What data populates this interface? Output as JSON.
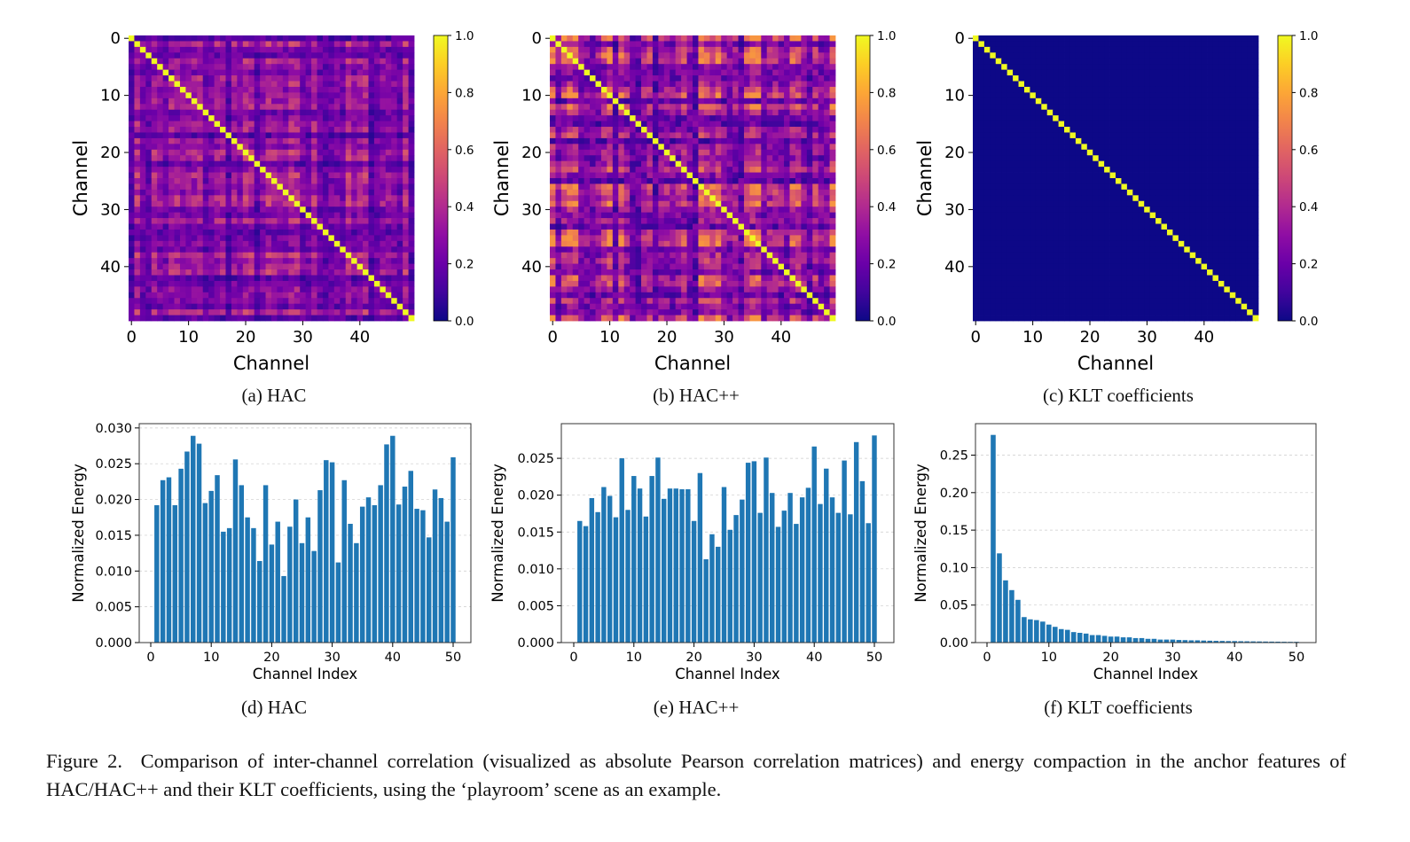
{
  "figure": {
    "caption_label": "Figure 2.",
    "caption_text": "Comparison of inter-channel correlation (visualized as absolute Pearson correlation matrices) and energy compaction in the anchor features of HAC/HAC++ and their KLT coefficients, using the ‘playroom’ scene as an example.",
    "subcaptions": [
      "(a) HAC",
      "(b) HAC++",
      "(c) KLT coefficients",
      "(d) HAC",
      "(e) HAC++",
      "(f) KLT coefficients"
    ]
  },
  "chart_data": [
    {
      "type": "heatmap",
      "panel": "a",
      "xlabel": "Channel",
      "ylabel": "Channel",
      "size": 50,
      "colormap": "plasma",
      "vlim": [
        0,
        1
      ],
      "diagonal": 1.0,
      "off_diagonal_range": [
        0.05,
        0.55
      ],
      "xticks": [
        "0",
        "10",
        "20",
        "30",
        "40"
      ],
      "yticks": [
        "0",
        "10",
        "20",
        "30",
        "40"
      ],
      "colorbar_ticks": [
        "0.0",
        "0.2",
        "0.4",
        "0.6",
        "0.8",
        "1.0"
      ]
    },
    {
      "type": "heatmap",
      "panel": "b",
      "xlabel": "Channel",
      "ylabel": "Channel",
      "size": 50,
      "colormap": "plasma",
      "vlim": [
        0,
        1
      ],
      "diagonal": 1.0,
      "off_diagonal_range": [
        0.05,
        0.75
      ],
      "xticks": [
        "0",
        "10",
        "20",
        "30",
        "40"
      ],
      "yticks": [
        "0",
        "10",
        "20",
        "30",
        "40"
      ],
      "colorbar_ticks": [
        "0.0",
        "0.2",
        "0.4",
        "0.6",
        "0.8",
        "1.0"
      ]
    },
    {
      "type": "heatmap",
      "panel": "c",
      "xlabel": "Channel",
      "ylabel": "Channel",
      "size": 50,
      "colormap": "plasma",
      "vlim": [
        0,
        1
      ],
      "diagonal": 1.0,
      "off_diagonal_range": [
        0,
        0
      ],
      "xticks": [
        "0",
        "10",
        "20",
        "30",
        "40"
      ],
      "yticks": [
        "0",
        "10",
        "20",
        "30",
        "40"
      ],
      "colorbar_ticks": [
        "0.0",
        "0.2",
        "0.4",
        "0.6",
        "0.8",
        "1.0"
      ]
    },
    {
      "type": "bar",
      "panel": "d",
      "xlabel": "Channel Index",
      "ylabel": "Normalized Energy",
      "color": "#1f77b4",
      "grid": "y-dashed",
      "ylim": [
        0,
        0.0306
      ],
      "xticks": [
        "0",
        "10",
        "20",
        "30",
        "40",
        "50"
      ],
      "yticks": [
        "0.000",
        "0.005",
        "0.010",
        "0.015",
        "0.020",
        "0.025",
        "0.030"
      ],
      "x": [
        1,
        2,
        3,
        4,
        5,
        6,
        7,
        8,
        9,
        10,
        11,
        12,
        13,
        14,
        15,
        16,
        17,
        18,
        19,
        20,
        21,
        22,
        23,
        24,
        25,
        26,
        27,
        28,
        29,
        30,
        31,
        32,
        33,
        34,
        35,
        36,
        37,
        38,
        39,
        40,
        41,
        42,
        43,
        44,
        45,
        46,
        47,
        48,
        49,
        50
      ],
      "values": [
        0.0192,
        0.0227,
        0.0231,
        0.0192,
        0.0243,
        0.0267,
        0.0289,
        0.0278,
        0.0195,
        0.0212,
        0.0234,
        0.0155,
        0.016,
        0.0256,
        0.022,
        0.0175,
        0.016,
        0.0114,
        0.022,
        0.0137,
        0.0169,
        0.0093,
        0.0162,
        0.02,
        0.0139,
        0.0175,
        0.0128,
        0.0213,
        0.0255,
        0.0252,
        0.0112,
        0.0227,
        0.0166,
        0.0139,
        0.019,
        0.0203,
        0.0192,
        0.022,
        0.0277,
        0.0289,
        0.0193,
        0.0218,
        0.024,
        0.0187,
        0.0185,
        0.0147,
        0.0214,
        0.0202,
        0.0169,
        0.0259
      ]
    },
    {
      "type": "bar",
      "panel": "e",
      "xlabel": "Channel Index",
      "ylabel": "Normalized Energy",
      "color": "#1f77b4",
      "grid": "y-dashed",
      "ylim": [
        0,
        0.0297
      ],
      "xticks": [
        "0",
        "10",
        "20",
        "30",
        "40",
        "50"
      ],
      "yticks": [
        "0.000",
        "0.005",
        "0.010",
        "0.015",
        "0.020",
        "0.025"
      ],
      "x": [
        1,
        2,
        3,
        4,
        5,
        6,
        7,
        8,
        9,
        10,
        11,
        12,
        13,
        14,
        15,
        16,
        17,
        18,
        19,
        20,
        21,
        22,
        23,
        24,
        25,
        26,
        27,
        28,
        29,
        30,
        31,
        32,
        33,
        34,
        35,
        36,
        37,
        38,
        39,
        40,
        41,
        42,
        43,
        44,
        45,
        46,
        47,
        48,
        49,
        50
      ],
      "values": [
        0.0165,
        0.0158,
        0.0196,
        0.0177,
        0.0211,
        0.0199,
        0.017,
        0.025,
        0.018,
        0.0226,
        0.0209,
        0.0171,
        0.0226,
        0.0251,
        0.0195,
        0.0209,
        0.0209,
        0.0208,
        0.0208,
        0.0165,
        0.023,
        0.0113,
        0.0147,
        0.013,
        0.0211,
        0.0153,
        0.0173,
        0.0194,
        0.0244,
        0.0246,
        0.0176,
        0.0251,
        0.0203,
        0.0157,
        0.0179,
        0.0203,
        0.0161,
        0.0197,
        0.021,
        0.0266,
        0.0188,
        0.0236,
        0.0197,
        0.0176,
        0.0247,
        0.0174,
        0.0272,
        0.0219,
        0.0162,
        0.0281
      ]
    },
    {
      "type": "bar",
      "panel": "f",
      "xlabel": "Channel Index",
      "ylabel": "Normalized Energy",
      "color": "#1f77b4",
      "grid": "y-dashed",
      "ylim": [
        0,
        0.292
      ],
      "xticks": [
        "0",
        "10",
        "20",
        "30",
        "40",
        "50"
      ],
      "yticks": [
        "0.00",
        "0.05",
        "0.10",
        "0.15",
        "0.20",
        "0.25"
      ],
      "x": [
        1,
        2,
        3,
        4,
        5,
        6,
        7,
        8,
        9,
        10,
        11,
        12,
        13,
        14,
        15,
        16,
        17,
        18,
        19,
        20,
        21,
        22,
        23,
        24,
        25,
        26,
        27,
        28,
        29,
        30,
        31,
        32,
        33,
        34,
        35,
        36,
        37,
        38,
        39,
        40,
        41,
        42,
        43,
        44,
        45,
        46,
        47,
        48,
        49,
        50
      ],
      "values": [
        0.277,
        0.119,
        0.083,
        0.07,
        0.057,
        0.034,
        0.031,
        0.03,
        0.028,
        0.024,
        0.021,
        0.018,
        0.017,
        0.014,
        0.013,
        0.012,
        0.01,
        0.01,
        0.009,
        0.008,
        0.008,
        0.007,
        0.007,
        0.006,
        0.006,
        0.005,
        0.005,
        0.004,
        0.004,
        0.004,
        0.0035,
        0.0033,
        0.003,
        0.003,
        0.0027,
        0.0025,
        0.0023,
        0.0022,
        0.002,
        0.002,
        0.0018,
        0.0017,
        0.0016,
        0.0015,
        0.0014,
        0.0013,
        0.0012,
        0.0011,
        0.001,
        0.001
      ]
    }
  ]
}
